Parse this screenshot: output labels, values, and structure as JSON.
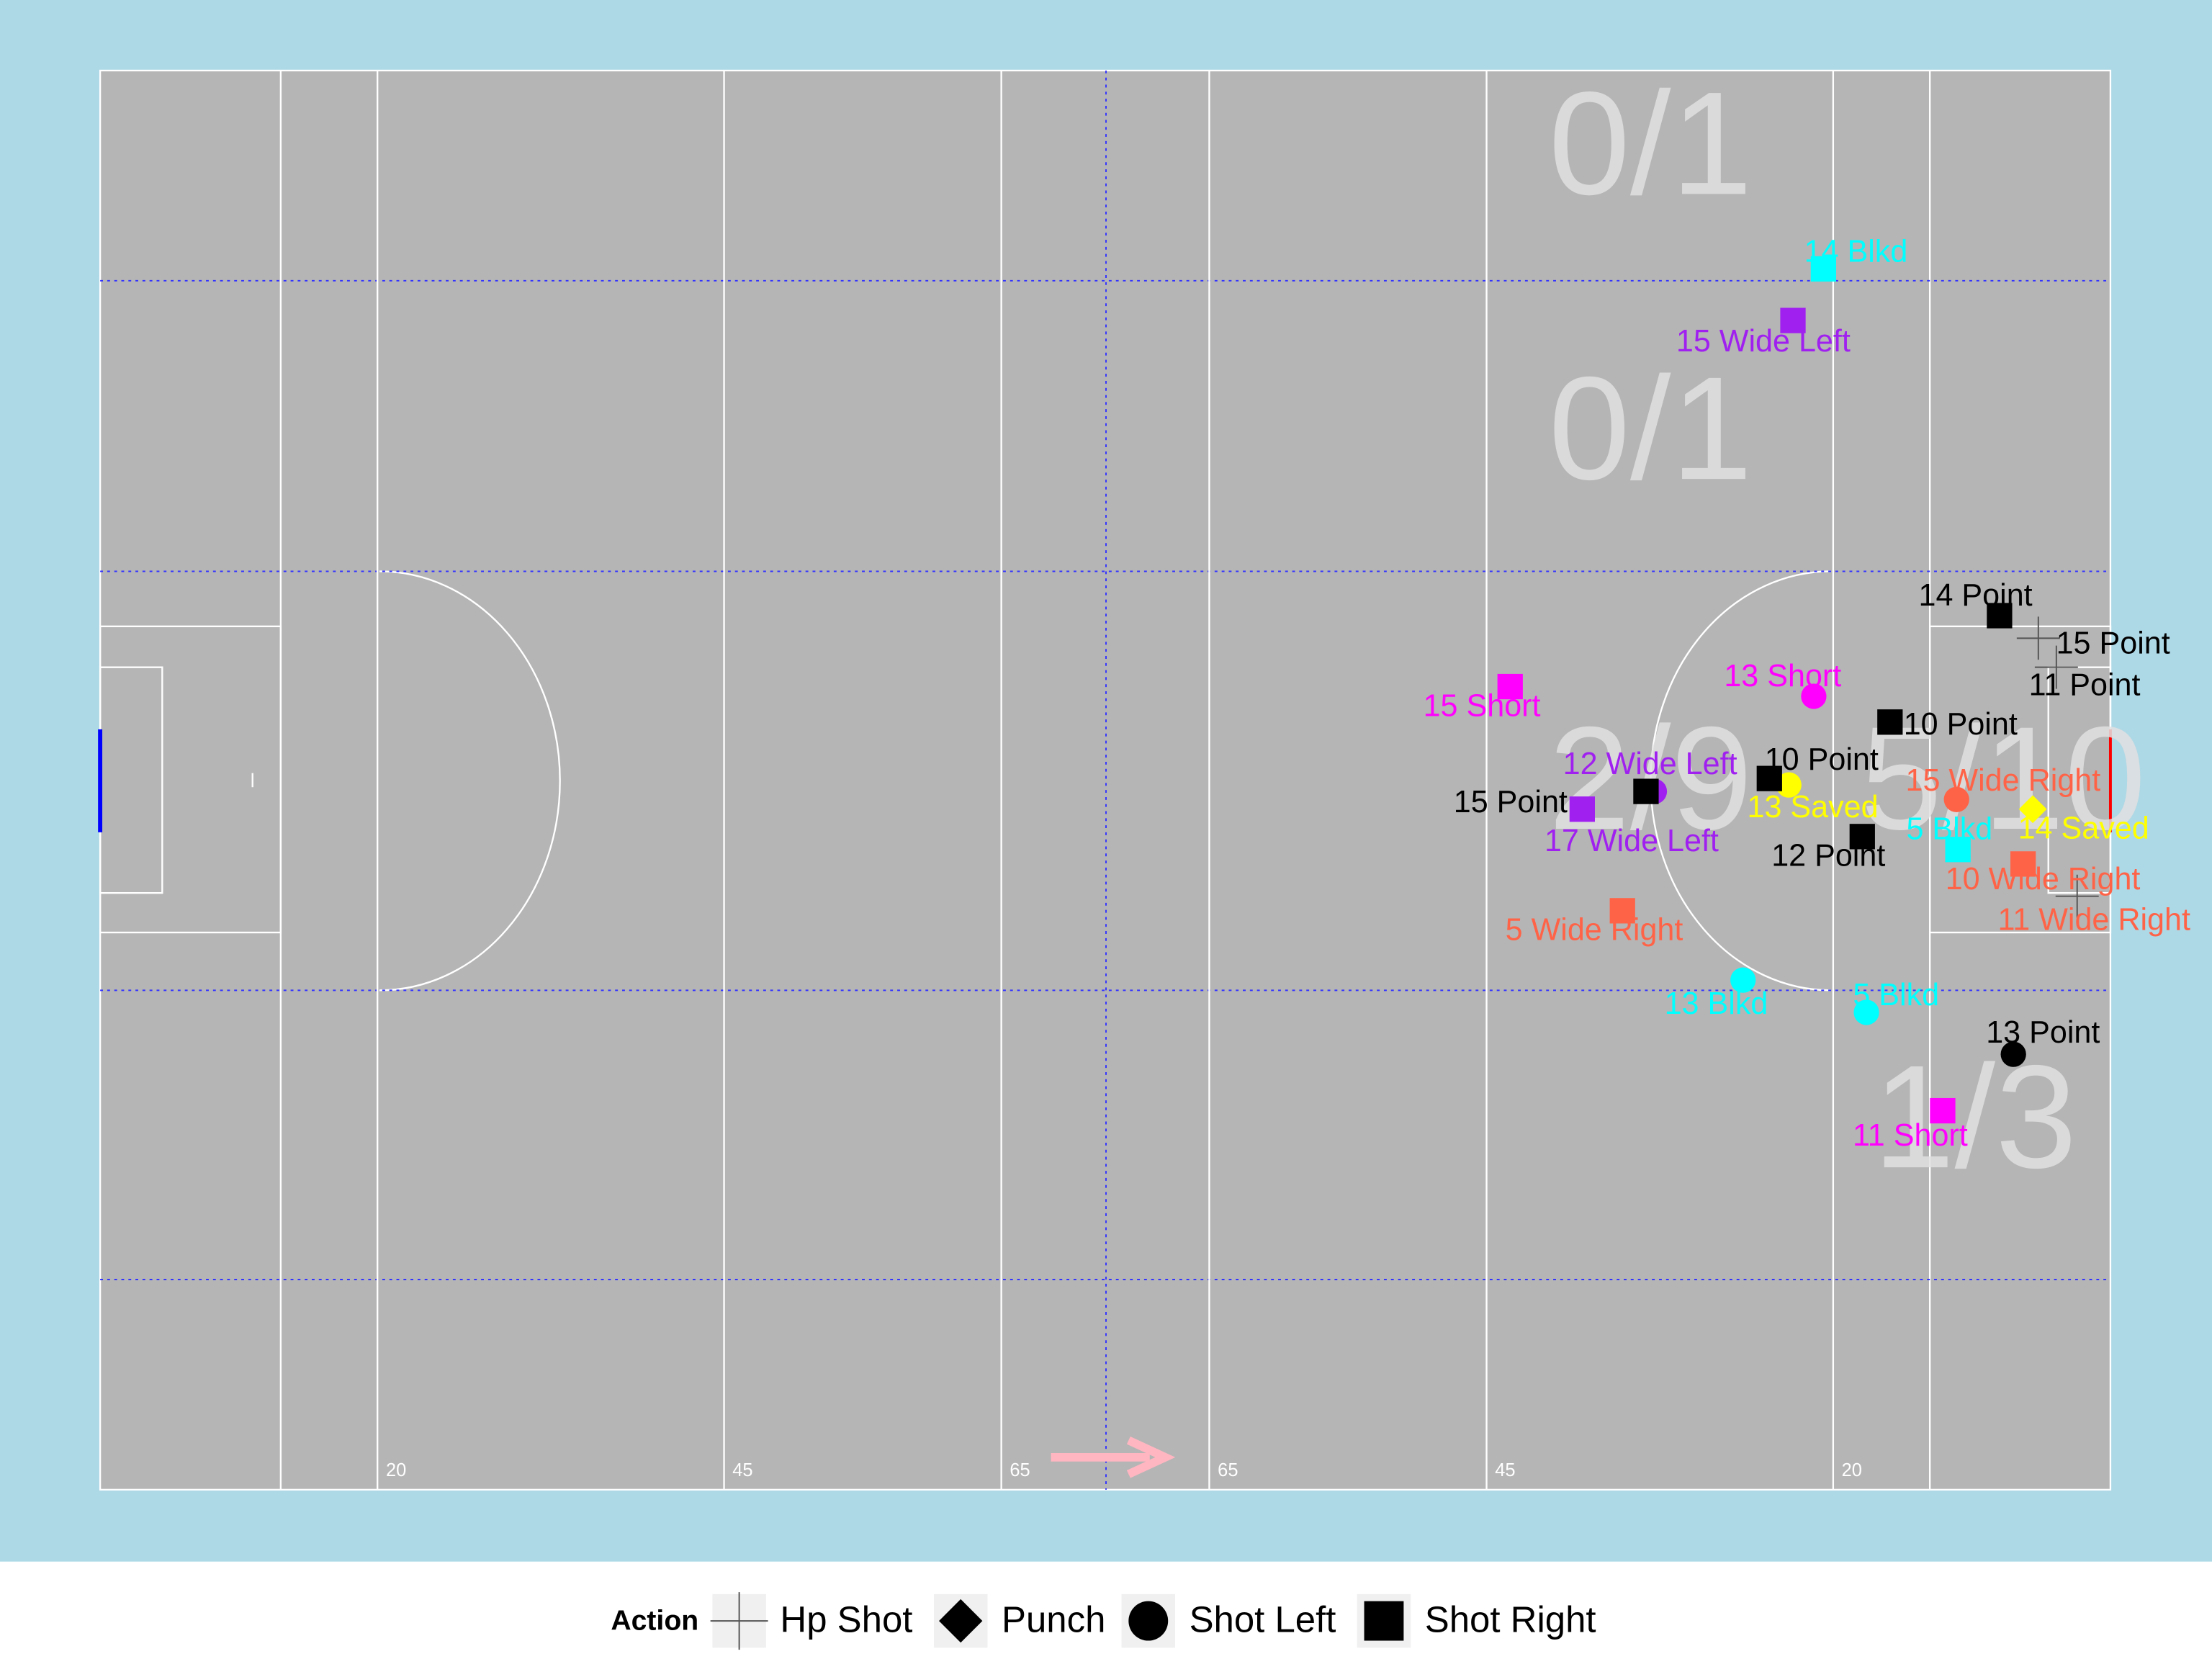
{
  "chart_data": {
    "type": "scatter",
    "xlim": [
      0,
      145
    ],
    "ylim": [
      0,
      88
    ],
    "xticks": [
      20,
      45,
      65,
      {
        "value": 80,
        "label": "65"
      },
      {
        "value": 100,
        "label": "45"
      },
      {
        "value": 125,
        "label": "20"
      }
    ],
    "annotations": [
      "0/1",
      "0/1",
      "2/9",
      "5/10",
      "1/3"
    ],
    "legend_title": "Action",
    "series": [
      {
        "name": "Hp Shot",
        "marker": "plus",
        "x": [
          139.8,
          141.1,
          142.6
        ],
        "y": [
          35.2,
          37.0,
          51.2
        ],
        "labels": [
          "15 Point",
          "11 Point",
          "11 Wide Right"
        ],
        "colors": [
          "#000000",
          "#000000",
          "#ff6347"
        ]
      },
      {
        "name": "Punch",
        "marker": "diamond",
        "x": [
          139.4
        ],
        "y": [
          45.8
        ],
        "labels": [
          "14 Saved"
        ],
        "colors": [
          "#ffff00"
        ]
      },
      {
        "name": "Shot Left",
        "marker": "circle",
        "x": [
          123.6,
          112.1,
          121.8,
          133.9,
          118.5,
          127.4,
          138.0
        ],
        "y": [
          38.8,
          44.7,
          44.3,
          45.2,
          56.4,
          58.4,
          61.0
        ],
        "labels": [
          "13 Short",
          "12 Wide Left",
          "13 Saved",
          "15 Wide Right",
          "13 Blkd",
          "5 Blkd",
          "13 Point"
        ],
        "colors": [
          "#ff00ff",
          "#a020f0",
          "#ffff00",
          "#ff6347",
          "#00ffff",
          "#00ffff",
          "#000000"
        ]
      },
      {
        "name": "Shot Right",
        "marker": "square",
        "x": [
          124.3,
          122.1,
          137.0,
          101.7,
          129.1,
          120.4,
          111.5,
          106.9,
          127.1,
          134.0,
          138.7,
          109.8,
          132.9
        ],
        "y": [
          12.3,
          15.5,
          33.8,
          38.2,
          40.4,
          43.9,
          44.7,
          45.8,
          47.5,
          48.3,
          49.2,
          52.1,
          64.5
        ],
        "labels": [
          "14 Blkd",
          "15 Wide Left",
          "14 Point",
          "15 Short",
          "10 Point",
          "10 Point",
          "15 Point",
          "17 Wide Left",
          "12 Point",
          "5 Blkd",
          "10 Wide Right",
          "5 Wide Right",
          "11 Short"
        ],
        "colors": [
          "#00ffff",
          "#a020f0",
          "#000000",
          "#ff00ff",
          "#000000",
          "#000000",
          "#000000",
          "#a020f0",
          "#000000",
          "#00ffff",
          "#ff6347",
          "#ff6347",
          "#ff00ff"
        ]
      }
    ]
  }
}
